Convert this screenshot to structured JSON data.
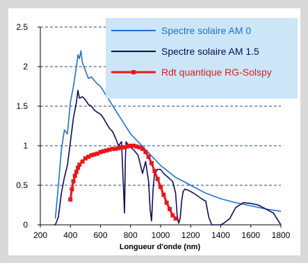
{
  "chart_data": {
    "type": "line",
    "title": "",
    "xlabel": "Longueur d'onde (nm)",
    "ylabel": "",
    "xlim": [
      200,
      1800
    ],
    "ylim": [
      0,
      2.5
    ],
    "x_ticks": [
      "200",
      "400",
      "600",
      "800",
      "1000",
      "1200",
      "1400",
      "1600",
      "1800"
    ],
    "y_ticks": [
      "0",
      "0.5",
      "1",
      "1.5",
      "2",
      "2.5"
    ],
    "grid": "horizontal dashed",
    "legend_position": "top-right",
    "legend_background": "#cce6f7",
    "series": [
      {
        "name": "Spectre solaire AM 0",
        "color": "#1f6fd1",
        "x": [
          300,
          320,
          340,
          360,
          380,
          400,
          420,
          440,
          450,
          460,
          470,
          480,
          490,
          500,
          520,
          540,
          560,
          580,
          600,
          650,
          700,
          750,
          800,
          850,
          900,
          950,
          1000,
          1100,
          1200,
          1300,
          1400,
          1500,
          1600,
          1700,
          1800
        ],
        "y": [
          0.08,
          0.5,
          0.95,
          1.2,
          1.15,
          1.55,
          1.75,
          2.0,
          2.15,
          2.1,
          2.2,
          2.05,
          2.0,
          1.95,
          1.85,
          1.87,
          1.82,
          1.78,
          1.75,
          1.6,
          1.45,
          1.3,
          1.15,
          1.05,
          0.95,
          0.85,
          0.75,
          0.6,
          0.5,
          0.4,
          0.33,
          0.28,
          0.24,
          0.2,
          0.17
        ]
      },
      {
        "name": "Spectre solaire AM 1.5",
        "color": "#0b0b5c",
        "x": [
          290,
          300,
          320,
          340,
          360,
          380,
          400,
          420,
          440,
          450,
          460,
          480,
          500,
          520,
          540,
          560,
          580,
          600,
          620,
          640,
          660,
          680,
          700,
          720,
          740,
          760,
          765,
          770,
          780,
          800,
          820,
          850,
          880,
          900,
          920,
          930,
          940,
          950,
          960,
          980,
          1000,
          1020,
          1050,
          1080,
          1100,
          1110,
          1120,
          1130,
          1140,
          1150,
          1160,
          1180,
          1200,
          1220,
          1250,
          1280,
          1300,
          1320,
          1340,
          1350,
          1360,
          1380,
          1400,
          1420,
          1440,
          1460,
          1480,
          1500,
          1550,
          1600,
          1650,
          1700,
          1750,
          1800
        ],
        "y": [
          0,
          0,
          0.1,
          0.4,
          0.6,
          0.75,
          1.05,
          1.35,
          1.55,
          1.7,
          1.6,
          1.62,
          1.58,
          1.52,
          1.5,
          1.45,
          1.42,
          1.4,
          1.35,
          1.28,
          1.22,
          1.18,
          1.1,
          1.0,
          1.05,
          0.15,
          0.8,
          1.05,
          1.02,
          0.98,
          0.95,
          0.88,
          0.65,
          0.8,
          0.55,
          0.2,
          0.05,
          0.45,
          0.65,
          0.7,
          0.7,
          0.65,
          0.6,
          0.55,
          0.4,
          0.12,
          0.02,
          0.08,
          0.3,
          0.42,
          0.45,
          0.44,
          0.42,
          0.4,
          0.36,
          0.32,
          0.3,
          0.1,
          0.0,
          0.0,
          0.0,
          0.0,
          0.0,
          0.02,
          0.05,
          0.08,
          0.15,
          0.22,
          0.28,
          0.27,
          0.25,
          0.2,
          0.15,
          0.0
        ]
      },
      {
        "name": "Rdt quantique RG-Solspy",
        "color": "#e8171c",
        "marker": "square",
        "x": [
          400,
          410,
          420,
          430,
          440,
          450,
          460,
          480,
          500,
          520,
          540,
          560,
          580,
          600,
          620,
          640,
          660,
          680,
          700,
          720,
          740,
          760,
          780,
          800,
          820,
          840,
          860,
          880,
          900,
          920,
          940,
          960,
          980,
          1000,
          1020,
          1040,
          1060,
          1080,
          1100
        ],
        "y": [
          0.32,
          0.45,
          0.55,
          0.62,
          0.67,
          0.72,
          0.76,
          0.8,
          0.84,
          0.86,
          0.88,
          0.89,
          0.9,
          0.92,
          0.93,
          0.94,
          0.95,
          0.96,
          0.96,
          0.97,
          0.98,
          0.98,
          0.99,
          1.0,
          1.0,
          0.99,
          0.98,
          0.96,
          0.92,
          0.86,
          0.78,
          0.68,
          0.58,
          0.48,
          0.38,
          0.28,
          0.2,
          0.12,
          0.08
        ]
      }
    ]
  }
}
